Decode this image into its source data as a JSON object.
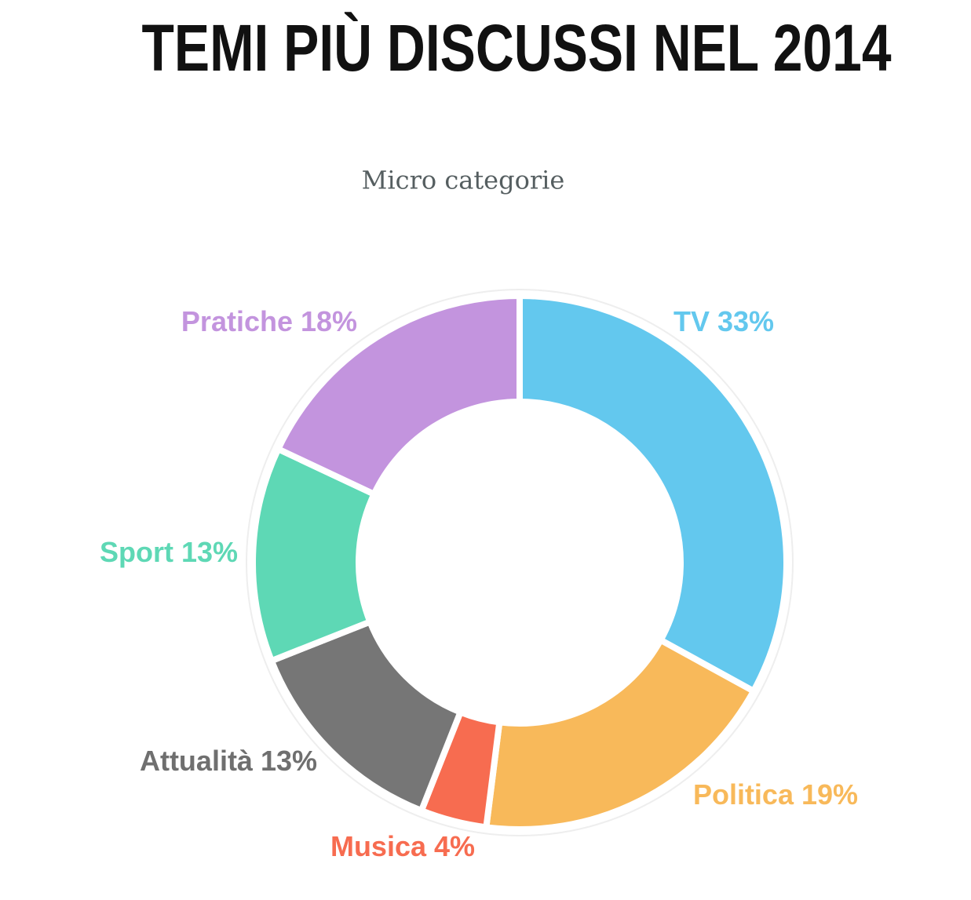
{
  "chart_data": {
    "type": "donut",
    "title": "TEMI PIÙ DISCUSSI NEL 2014",
    "subtitle": "Micro categorie",
    "categories": [
      "TV",
      "Politica",
      "Musica",
      "Attualità",
      "Sport",
      "Pratiche"
    ],
    "values": [
      33,
      19,
      4,
      13,
      13,
      18
    ],
    "value_labels": [
      "33%",
      "19%",
      "4%",
      "13%",
      "13%",
      "18%"
    ],
    "colors": [
      "#63c8ee",
      "#f8b95a",
      "#f76c50",
      "#767676",
      "#5ed8b5",
      "#c394de"
    ],
    "label_colors": [
      "#63c8ee",
      "#f8b95a",
      "#f76c50",
      "#6f6f6f",
      "#5ed8b5",
      "#c394de"
    ]
  }
}
